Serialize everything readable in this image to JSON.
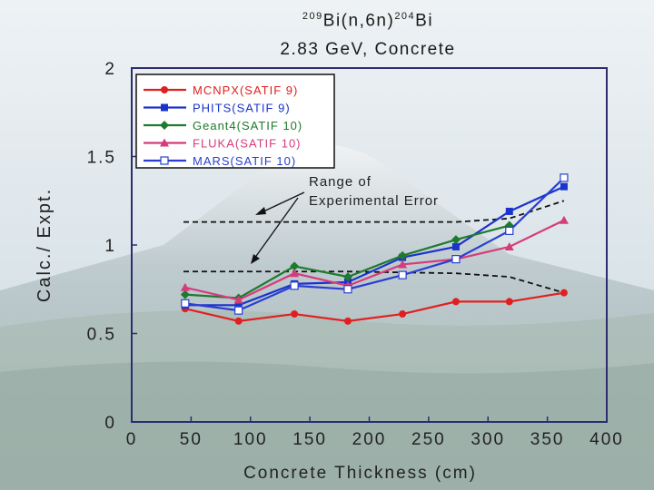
{
  "chart_data": {
    "type": "line",
    "title_parts": {
      "sup1": "209",
      "mid1": "Bi(n,6n)",
      "sup2": "204",
      "mid2": "Bi"
    },
    "subtitle": "2.83 GeV, Concrete",
    "xlabel": "Concrete Thickness (cm)",
    "ylabel": "Calc./ Expt.",
    "xlim": [
      0,
      400
    ],
    "ylim": [
      0,
      2
    ],
    "xticks": [
      "0",
      "50",
      "100",
      "150",
      "200",
      "250",
      "300",
      "350",
      "400"
    ],
    "yticks": [
      "0",
      "0.5",
      "1",
      "1.5",
      "2"
    ],
    "grid": false,
    "legend_position": "top-left",
    "annotation": [
      "Range of",
      "Experimental Error"
    ],
    "x": [
      45,
      90,
      137,
      182,
      228,
      273,
      318,
      364
    ],
    "series": [
      {
        "name": "MCNPX(SATIF 9)",
        "color": "#e02020",
        "marker": "circle",
        "values": [
          0.64,
          0.57,
          0.61,
          0.57,
          0.61,
          0.68,
          0.68,
          0.73
        ]
      },
      {
        "name": "PHITS(SATIF 9)",
        "color": "#1a33cc",
        "marker": "square",
        "values": [
          0.66,
          0.66,
          0.78,
          0.79,
          0.93,
          0.99,
          1.19,
          1.33
        ]
      },
      {
        "name": "Geant4(SATIF 10)",
        "color": "#1e7a2e",
        "marker": "diamond",
        "values": [
          0.72,
          0.7,
          0.88,
          0.82,
          0.94,
          1.03,
          1.11,
          null
        ]
      },
      {
        "name": "FLUKA(SATIF 10)",
        "color": "#d63c7c",
        "marker": "triangle",
        "values": [
          0.76,
          0.69,
          0.84,
          0.77,
          0.89,
          0.92,
          0.99,
          1.14
        ]
      },
      {
        "name": "MARS(SATIF 10)",
        "color": "#2a3fd0",
        "marker": "open-square",
        "values": [
          0.67,
          0.63,
          0.77,
          0.75,
          0.83,
          0.92,
          1.08,
          1.38
        ]
      }
    ],
    "error_range_upper": {
      "x": [
        45,
        182,
        273,
        318,
        364
      ],
      "values": [
        1.13,
        1.13,
        1.13,
        1.15,
        1.25
      ]
    },
    "error_range_lower": {
      "x": [
        45,
        182,
        273,
        318,
        364
      ],
      "values": [
        0.85,
        0.85,
        0.84,
        0.82,
        0.73
      ]
    }
  }
}
